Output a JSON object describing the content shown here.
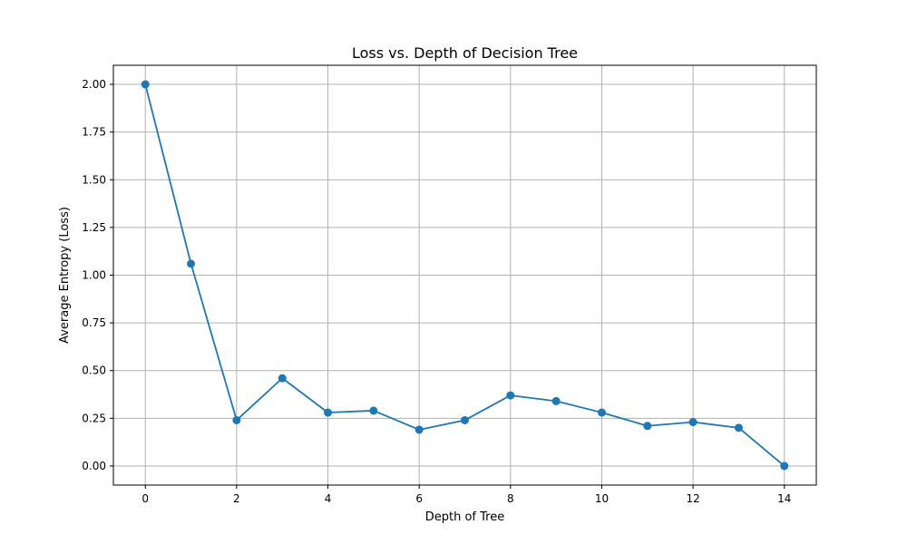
{
  "chart_data": {
    "type": "line",
    "title": "Loss vs. Depth of Decision Tree",
    "xlabel": "Depth of Tree",
    "ylabel": "Average Entropy (Loss)",
    "x": [
      0,
      1,
      2,
      3,
      4,
      5,
      6,
      7,
      8,
      9,
      10,
      11,
      12,
      13,
      14
    ],
    "series": [
      {
        "values": [
          2.0,
          1.06,
          0.24,
          0.46,
          0.28,
          0.29,
          0.19,
          0.24,
          0.37,
          0.34,
          0.28,
          0.21,
          0.23,
          0.2,
          0.0
        ],
        "color": "#1f77b4",
        "marker": "circle"
      }
    ],
    "xlim": [
      -0.7,
      14.7
    ],
    "ylim": [
      -0.1,
      2.1
    ],
    "xticks": [
      "0",
      "2",
      "4",
      "6",
      "8",
      "10",
      "12",
      "14"
    ],
    "yticks": [
      "0.00",
      "0.25",
      "0.50",
      "0.75",
      "1.00",
      "1.25",
      "1.50",
      "1.75",
      "2.00"
    ],
    "grid": true,
    "grid_color": "#b0b0b0"
  }
}
